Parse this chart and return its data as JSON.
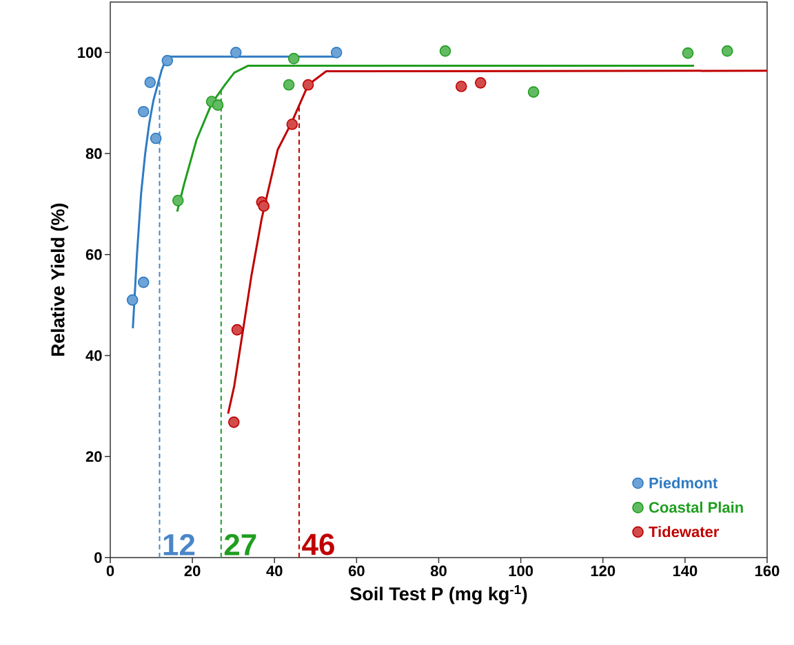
{
  "chart_data": {
    "type": "scatter",
    "xlabel": "Soil Test P (mg kg$^{-1}$)",
    "ylabel": "Relative Yield (%)",
    "xlim": [
      0,
      160
    ],
    "ylim": [
      0,
      110
    ],
    "xticks": [
      0,
      20,
      40,
      60,
      80,
      100,
      120,
      140,
      160
    ],
    "yticks": [
      0,
      20,
      40,
      60,
      80,
      100
    ],
    "legend": "bottom right",
    "grid": false,
    "series": [
      {
        "name": "Piedmont",
        "color": "#2e7bc4",
        "marker": "circle",
        "x": [
          5.4,
          8.1,
          8.1,
          9.7,
          11.1,
          13.9,
          30.6,
          55.1
        ],
        "values": [
          51,
          54.5,
          88.3,
          94.1,
          83,
          98.4,
          100,
          100
        ]
      },
      {
        "name": "Coastal Plain",
        "color": "#1f9e1f",
        "marker": "circle",
        "x": [
          16.5,
          24.7,
          26.2,
          43.5,
          44.7,
          81.6,
          103.1,
          140.7,
          150.3
        ],
        "values": [
          70.7,
          90.3,
          89.6,
          93.6,
          98.8,
          100.3,
          92.2,
          99.9,
          100.3
        ]
      },
      {
        "name": "Tidewater",
        "color": "#c00000",
        "marker": "circle",
        "x": [
          30.1,
          30.9,
          36.9,
          37.4,
          44.3,
          48.2,
          85.5,
          90.2
        ],
        "values": [
          26.8,
          45.1,
          70.4,
          69.6,
          85.8,
          93.6,
          93.3,
          94
        ]
      },
      {
        "type": "line",
        "color": "#2e7bc4",
        "line_style": "solid",
        "marker": "none",
        "x": [
          5.5,
          6.5,
          7.5,
          8.5,
          9.5,
          10.5,
          11.5,
          12.5,
          13.5,
          14.5,
          55
        ],
        "values": [
          45.4,
          60,
          72,
          80,
          86,
          90.5,
          93.5,
          96.5,
          98.5,
          99.2,
          99.2
        ]
      },
      {
        "type": "line",
        "color": "#1f9e1f",
        "line_style": "solid",
        "marker": "none",
        "x": [
          16.3,
          18,
          21,
          24.7,
          28,
          30.2,
          33.6,
          142.2
        ],
        "values": [
          68.5,
          74,
          82.7,
          89.9,
          93.7,
          96,
          97.4,
          97.4
        ]
      },
      {
        "type": "line",
        "color": "#c00000",
        "line_style": "solid",
        "marker": "none",
        "x": [
          28.7,
          30.2,
          32.4,
          34.4,
          36.9,
          40.8,
          44.2,
          48.2,
          52.6,
          160
        ],
        "values": [
          28.5,
          34,
          45.4,
          55.9,
          67.2,
          80.8,
          86.2,
          93.6,
          96.3,
          96.4
        ]
      }
    ],
    "ref_lines": [
      {
        "axis": "x",
        "value": 12,
        "label": "12",
        "color": "#4a86c8",
        "line_style": "dashed"
      },
      {
        "axis": "x",
        "value": 27,
        "label": "27",
        "color": "#1f9e1f",
        "line_style": "dashed"
      },
      {
        "axis": "x",
        "value": 46,
        "label": "46",
        "color": "#c00000",
        "line_style": "dashed"
      }
    ]
  }
}
